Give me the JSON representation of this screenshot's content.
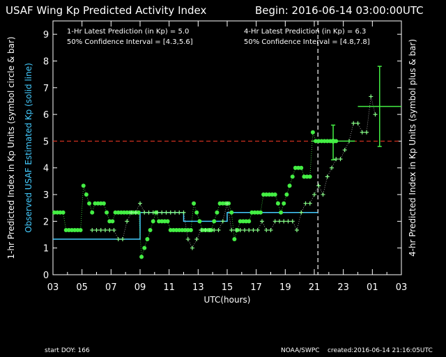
{
  "header": {
    "title": "USAF Wing Kp Predicted Activity Index",
    "begin": "Begin: 2016-06-14 03:00:00UTC"
  },
  "info": {
    "hr1_latest": "1-Hr Latest Prediction (in Kp) = 5.0",
    "hr1_ci": "50% Confidence Interval  = [4.3,5.6]",
    "hr4_latest": "4-Hr Latest Prediction (in Kp) = 6.3",
    "hr4_ci": "50% Confidence Interval  = [4.8,7.8]"
  },
  "footer": {
    "start_doy": "start DOY:  166",
    "noaa": "NOAA/SWPC",
    "created": "created:2016-06-14 21:16:05UTC"
  },
  "colors": {
    "observed": "#44ccff",
    "hr1": "#44ee44",
    "hr4": "#88ff88",
    "threshold": "#dd3322",
    "axes": "#ffffff"
  },
  "chart_data": {
    "type": "line",
    "xlabel": "UTC(hours)",
    "ylabel_left": "1-hr Predicted Index in Kp Units (symbol circle & bar)",
    "ylabel_left2": "Observed USAF Estimated Kp (solid line)",
    "ylabel_right": "4-hr Predicted Index in Kp Units (symbol plus & bar)",
    "x_ticks": [
      "03",
      "05",
      "07",
      "09",
      "11",
      "13",
      "15",
      "17",
      "19",
      "21",
      "23",
      "01",
      "03"
    ],
    "y_ticks": [
      "0",
      "1",
      "2",
      "3",
      "4",
      "5",
      "6",
      "7",
      "8",
      "9"
    ],
    "xlim": [
      0,
      24
    ],
    "ylim": [
      0,
      9.5
    ],
    "threshold": 5,
    "now_marker": 18.25,
    "observed_kp": {
      "x": [
        0,
        6,
        6,
        9,
        9,
        12,
        12,
        18.25
      ],
      "y": [
        1.33,
        1.33,
        2.33,
        2.33,
        2.0,
        2.0,
        2.33,
        2.33
      ]
    },
    "hr1_prediction": {
      "x": [
        0.1,
        0.3,
        0.5,
        0.7,
        0.9,
        1.1,
        1.3,
        1.5,
        1.7,
        1.9,
        2.1,
        2.3,
        2.5,
        2.7,
        2.9,
        3.1,
        3.3,
        3.5,
        3.7,
        3.9,
        4.1,
        4.3,
        4.5,
        4.7,
        4.9,
        5.1,
        5.3,
        5.5,
        5.7,
        5.9,
        6.1,
        6.3,
        6.5,
        6.7,
        6.9,
        7.1,
        7.3,
        7.5,
        7.7,
        7.9,
        8.1,
        8.3,
        8.5,
        8.7,
        8.9,
        9.1,
        9.3,
        9.5,
        9.7,
        9.9,
        10.1,
        10.3,
        10.5,
        10.7,
        10.9,
        11.1,
        11.3,
        11.5,
        11.7,
        11.9,
        12.1,
        12.3,
        12.5,
        12.7,
        12.9,
        13.1,
        13.3,
        13.5,
        13.7,
        13.9,
        14.1,
        14.3,
        14.5,
        14.7,
        14.9,
        15.1,
        15.3,
        15.5,
        15.7,
        15.9,
        16.1,
        16.3,
        16.5,
        16.7,
        16.9,
        17.1,
        17.3,
        17.5,
        17.7,
        17.9,
        18.1,
        18.3,
        18.5,
        18.7,
        18.9,
        19.1,
        19.3,
        19.5
      ],
      "y": [
        2.33,
        2.33,
        2.33,
        2.33,
        1.67,
        1.67,
        1.67,
        1.67,
        1.67,
        1.67,
        3.33,
        3.0,
        2.67,
        2.33,
        2.67,
        2.67,
        2.67,
        2.67,
        2.33,
        2.0,
        2.0,
        2.33,
        2.33,
        2.33,
        2.33,
        2.33,
        2.33,
        2.33,
        2.33,
        2.33,
        0.67,
        1.0,
        1.33,
        1.67,
        2.0,
        2.33,
        2.0,
        2.0,
        2.0,
        2.0,
        1.67,
        1.67,
        1.67,
        1.67,
        1.67,
        1.67,
        1.67,
        1.67,
        2.67,
        2.33,
        2.0,
        1.67,
        1.67,
        1.67,
        1.67,
        2.0,
        2.33,
        2.67,
        2.67,
        2.67,
        2.67,
        2.33,
        1.33,
        1.67,
        2.0,
        2.0,
        2.0,
        2.0,
        2.33,
        2.33,
        2.33,
        2.33,
        3.0,
        3.0,
        3.0,
        3.0,
        3.0,
        2.67,
        2.33,
        2.67,
        3.0,
        3.33,
        3.67,
        4.0,
        4.0,
        4.0,
        3.67,
        3.67,
        3.67,
        5.33,
        5.0,
        5.0,
        5.0,
        5.0,
        5.0,
        5.0,
        5.0,
        5.0
      ]
    },
    "hr1_latest": {
      "x": 19.3,
      "y": 5.0,
      "ci": [
        4.3,
        5.6
      ]
    },
    "hr4_prediction": {
      "x": [
        2.7,
        3.0,
        3.3,
        3.6,
        3.9,
        4.2,
        4.5,
        4.8,
        5.1,
        5.4,
        5.7,
        6.0,
        6.3,
        6.6,
        6.9,
        7.2,
        7.5,
        7.8,
        8.1,
        8.4,
        8.7,
        9.0,
        9.3,
        9.6,
        9.9,
        10.2,
        10.5,
        10.8,
        11.1,
        11.4,
        11.7,
        12.0,
        12.3,
        12.6,
        12.9,
        13.2,
        13.5,
        13.8,
        14.1,
        14.4,
        14.7,
        15.0,
        15.3,
        15.6,
        15.9,
        16.2,
        16.5,
        16.8,
        17.1,
        17.4,
        17.7,
        18.0,
        18.3,
        18.6,
        18.9,
        19.2,
        19.5,
        19.8,
        20.1,
        20.4,
        20.7,
        21.0,
        21.3,
        21.6,
        21.9,
        22.2
      ],
      "y": [
        1.67,
        1.67,
        1.67,
        1.67,
        1.67,
        1.67,
        1.33,
        1.33,
        2.0,
        2.33,
        2.33,
        2.67,
        2.33,
        2.33,
        2.33,
        2.33,
        2.33,
        2.33,
        2.33,
        2.33,
        2.33,
        2.33,
        1.33,
        1.0,
        1.33,
        1.67,
        1.67,
        1.67,
        1.67,
        1.67,
        2.0,
        2.67,
        1.67,
        1.67,
        1.67,
        1.67,
        1.67,
        1.67,
        1.67,
        2.0,
        1.67,
        1.67,
        2.0,
        2.0,
        2.0,
        2.0,
        2.0,
        1.67,
        2.33,
        2.67,
        2.67,
        3.0,
        3.33,
        3.0,
        3.67,
        4.0,
        4.33,
        4.33,
        4.67,
        5.0,
        5.67,
        5.67,
        5.33,
        5.33,
        6.67,
        6.0
      ]
    },
    "hr4_latest": {
      "x": 22.5,
      "y": 6.3,
      "ci": [
        4.8,
        7.8
      ]
    }
  }
}
